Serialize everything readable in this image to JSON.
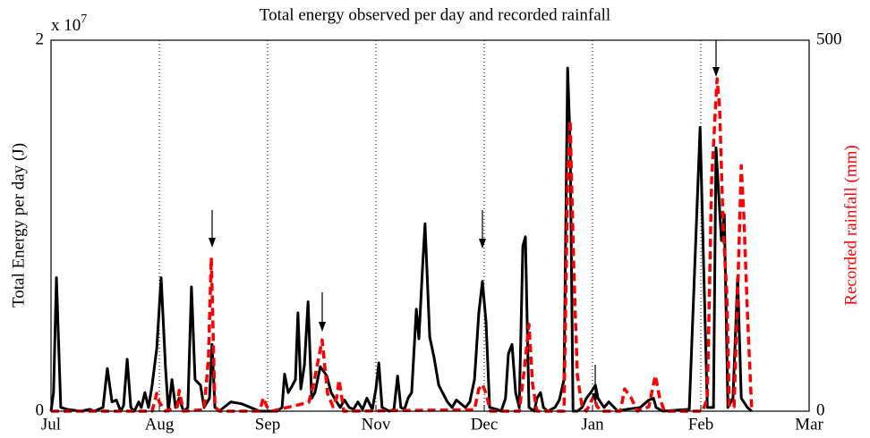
{
  "chart_data": {
    "type": "line",
    "title": "Total energy observed per day and recorded rainfall",
    "y_label": "Total Energy per day (J)",
    "y2_label": "Recorded rainfall (mm)",
    "y_multiplier": {
      "base": "x 10",
      "exponent": "7"
    },
    "xlim": [
      0,
      210
    ],
    "xticks": [
      {
        "value": 0,
        "label": "Jul"
      },
      {
        "value": 30,
        "label": "Aug"
      },
      {
        "value": 60,
        "label": "Sep"
      },
      {
        "value": 90,
        "label": "Nov"
      },
      {
        "value": 120,
        "label": "Dec"
      },
      {
        "value": 150,
        "label": "Jan"
      },
      {
        "value": 180,
        "label": "Feb"
      },
      {
        "value": 210,
        "label": "Mar"
      }
    ],
    "ylim": [
      0,
      2
    ],
    "yticks": [
      0,
      2
    ],
    "y2lim": [
      0,
      500
    ],
    "y2ticks": [
      0,
      500
    ],
    "y2_color": "#ff0000",
    "grid": "x",
    "series": [
      {
        "color": "#000000",
        "line_style": "solid",
        "axis": "y",
        "x": [
          0,
          0.7,
          1.5,
          2.7,
          4.5,
          8.2,
          10.7,
          11.9,
          14.4,
          15.6,
          16.9,
          18.1,
          19.3,
          20.1,
          21.1,
          22.1,
          23.1,
          24.3,
          25.0,
          26.0,
          27.0,
          28.0,
          29.3,
          30.5,
          31.7,
          32.5,
          33.5,
          34.5,
          35.5,
          36.7,
          37.9,
          38.9,
          39.9,
          41.4,
          42.4,
          43.9,
          44.6,
          45.4,
          46.6,
          49.8,
          52.8,
          55.3,
          57.8,
          62.7,
          64.0,
          64.7,
          65.7,
          66.9,
          67.7,
          68.4,
          69.2,
          70.2,
          71.2,
          72.2,
          73.1,
          74.6,
          76.4,
          77.6,
          78.8,
          80.1,
          81.3,
          82.6,
          83.8,
          85.0,
          86.3,
          87.5,
          89.0,
          90.0,
          90.8,
          91.7,
          93.7,
          95.0,
          96.0,
          96.9,
          97.9,
          98.9,
          99.9,
          101.2,
          101.9,
          102.9,
          103.6,
          104.9,
          106.1,
          107.4,
          109.8,
          111.1,
          112.3,
          114.8,
          116.0,
          117.3,
          118.5,
          119.5,
          120.5,
          121.5,
          123.5,
          124.7,
          125.9,
          126.7,
          127.7,
          128.7,
          129.7,
          130.7,
          131.4,
          132.4,
          133.9,
          134.6,
          135.6,
          136.4,
          137.6,
          139.6,
          140.8,
          142.1,
          143.1,
          143.8,
          144.6,
          145.8,
          147.1,
          148.3,
          149.5,
          150.8,
          151.5,
          153.2,
          154.5,
          157.0,
          159.4,
          163.2,
          165.6,
          166.9,
          167.6,
          169.4,
          176.8,
          179.8,
          180.8,
          181.8,
          183.5,
          184.2,
          185.7,
          186.5,
          187.5,
          188.9,
          190.2,
          191.2,
          192.9,
          194.1
        ],
        "values": [
          0,
          0.1,
          0.72,
          0.02,
          0.01,
          0,
          0.01,
          0,
          0.02,
          0.23,
          0.05,
          0.06,
          0,
          0.03,
          0.28,
          0.02,
          0,
          0.05,
          0.02,
          0.1,
          0.02,
          0.14,
          0.34,
          0.72,
          0.24,
          0,
          0.17,
          0.02,
          0.07,
          0,
          0.02,
          0.67,
          0.17,
          0.14,
          0.02,
          0.07,
          0.36,
          0.02,
          0,
          0.05,
          0.04,
          0.02,
          0,
          0,
          0.02,
          0.2,
          0.1,
          0.14,
          0.17,
          0.53,
          0.12,
          0.25,
          0.59,
          0.07,
          0.1,
          0.24,
          0.19,
          0.1,
          0.06,
          0.02,
          0.06,
          0.02,
          0.01,
          0.05,
          0.01,
          0.07,
          0.01,
          0.12,
          0.26,
          0.02,
          0,
          0.01,
          0.19,
          0.02,
          0.01,
          0.07,
          0.1,
          0.55,
          0.39,
          0.77,
          1.01,
          0.4,
          0.29,
          0.14,
          0.05,
          0.02,
          0.06,
          0.02,
          0.05,
          0.17,
          0.53,
          0.7,
          0.48,
          0.02,
          0.01,
          0,
          0.07,
          0.31,
          0.36,
          0.1,
          0.02,
          0.89,
          0.94,
          0.02,
          0,
          0.07,
          0.1,
          0.02,
          0,
          0.02,
          0.06,
          0.17,
          1.85,
          1.45,
          0,
          0,
          0.02,
          0.07,
          0.1,
          0.14,
          0.07,
          0.02,
          0.05,
          0,
          0.01,
          0.02,
          0.06,
          0.07,
          0.02,
          0,
          0.01,
          1.53,
          0.77,
          0.02,
          0.02,
          1.42,
          0.92,
          1.06,
          0.02,
          0.07,
          0.72,
          0.07,
          0.02,
          0
        ]
      },
      {
        "color": "#ff0000",
        "line_style": "dashed",
        "axis": "y2",
        "x": [
          0,
          28.0,
          29.3,
          30.0,
          31.7,
          35.0,
          35.5,
          36.7,
          42.4,
          43.6,
          44.4,
          45.4,
          46.6,
          57.8,
          58.8,
          59.8,
          61.2,
          71.4,
          72.7,
          73.9,
          75.1,
          76.6,
          78.1,
          79.1,
          79.8,
          81.1,
          117.3,
          118.5,
          119.5,
          120.5,
          121.7,
          129.7,
          130.9,
          132.4,
          133.4,
          134.6,
          142.1,
          143.1,
          143.8,
          144.8,
          145.8,
          147.1,
          148.3,
          149.5,
          150.3,
          151.3,
          152.5,
          157.7,
          158.9,
          160.7,
          162.4,
          165.6,
          167.4,
          168.6,
          169.9,
          180.5,
          181.8,
          183.0,
          184.5,
          185.2,
          186.2,
          187.2,
          187.9,
          189.2,
          190.2,
          191.2,
          191.9,
          192.9,
          194.1
        ],
        "values": [
          0,
          0,
          24,
          12,
          0,
          6,
          28,
          0,
          2,
          70,
          207,
          6,
          0,
          0,
          18,
          6,
          0,
          12,
          36,
          66,
          96,
          24,
          6,
          18,
          42,
          0,
          2,
          30,
          36,
          24,
          0,
          0,
          48,
          117,
          36,
          0,
          0,
          313,
          392,
          193,
          48,
          6,
          0,
          12,
          20,
          6,
          0,
          0,
          30,
          18,
          0,
          6,
          48,
          18,
          0,
          0,
          18,
          313,
          448,
          410,
          247,
          157,
          6,
          6,
          157,
          331,
          265,
          133,
          0
        ]
      }
    ]
  }
}
